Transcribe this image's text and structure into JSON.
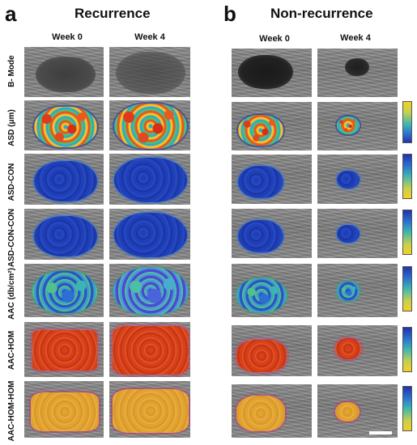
{
  "panels": {
    "a": {
      "letter": "a",
      "title": "Recurrence"
    },
    "b": {
      "letter": "b",
      "title": "Non-recurrence"
    }
  },
  "columns": {
    "week0": "Week 0",
    "week4": "Week 4"
  },
  "rows": [
    {
      "label": "B- Mode"
    },
    {
      "label": "ASD (μm)"
    },
    {
      "label": "ASD-CON"
    },
    {
      "label": "ASD-CON-CON"
    },
    {
      "label": "AAC (db/cm²)"
    },
    {
      "label": "AAC-HOM"
    },
    {
      "label": "AAC-HOM-HOM"
    }
  ],
  "colors": {
    "colorbar_top_yellow": "#f2d027",
    "colorbar_bottom_blue": "#2232a8",
    "scale_bar": "#ffffff"
  }
}
